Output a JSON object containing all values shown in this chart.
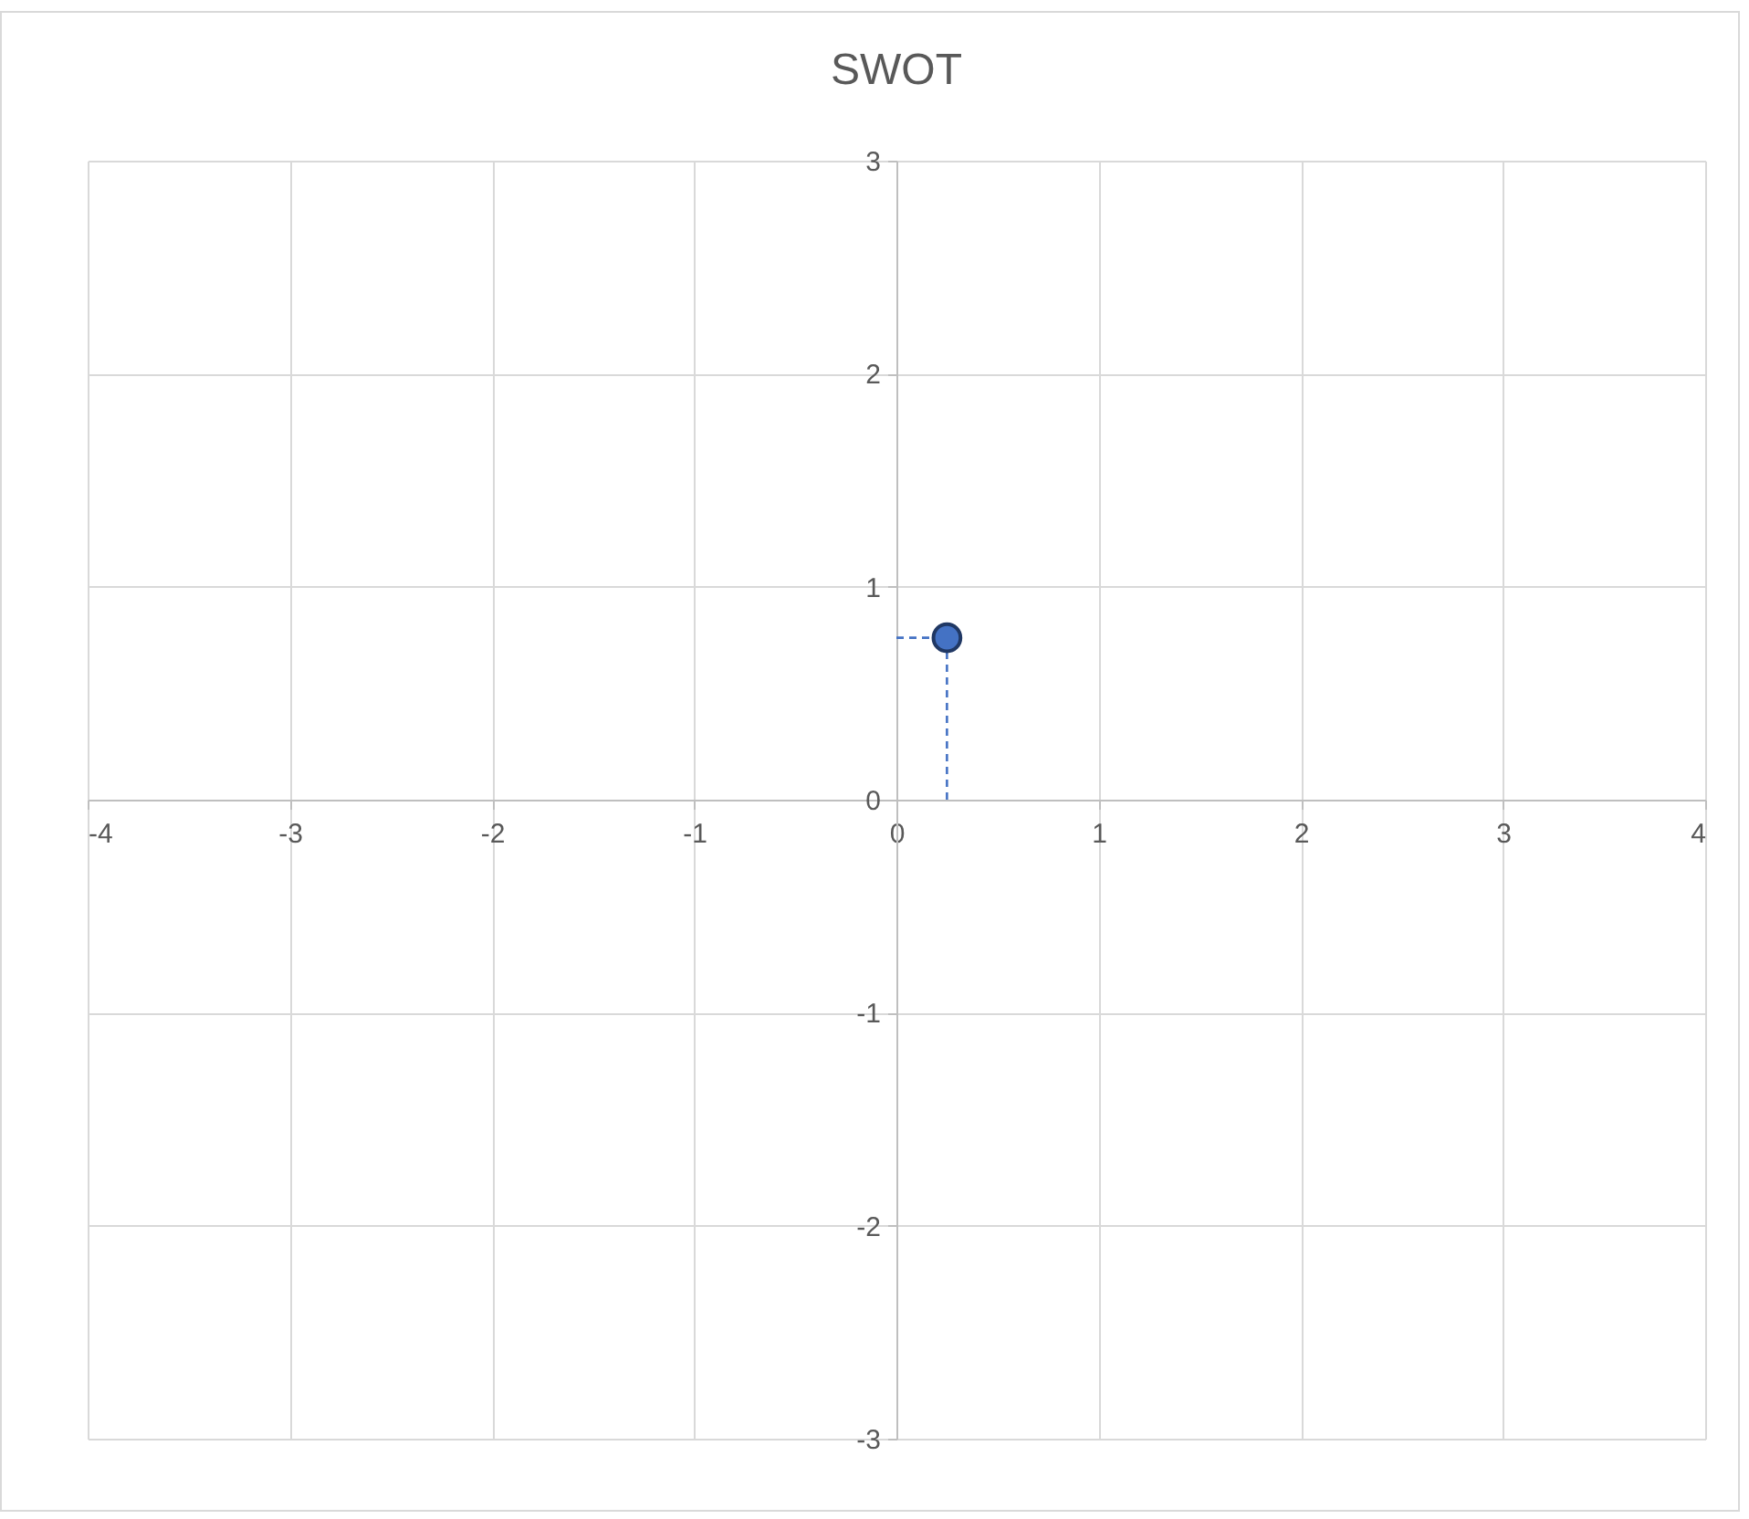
{
  "chart_data": {
    "type": "scatter",
    "title": "SWOT",
    "x": [
      0.25
    ],
    "values": [
      0.76
    ],
    "errors": [
      [
        0,
        0.76
      ]
    ],
    "xerrors": [
      [
        0,
        0.25
      ]
    ],
    "color": "#4472c4",
    "marker": "circle",
    "line_style": "dashed",
    "xlim": [
      -4,
      4
    ],
    "xticks": [
      -4,
      -3,
      -2,
      -1,
      0,
      1,
      2,
      3,
      4
    ],
    "ylim": [
      -3,
      3
    ],
    "yticks": [
      -3,
      -2,
      -1,
      0,
      1,
      2,
      3
    ],
    "grid": true
  }
}
